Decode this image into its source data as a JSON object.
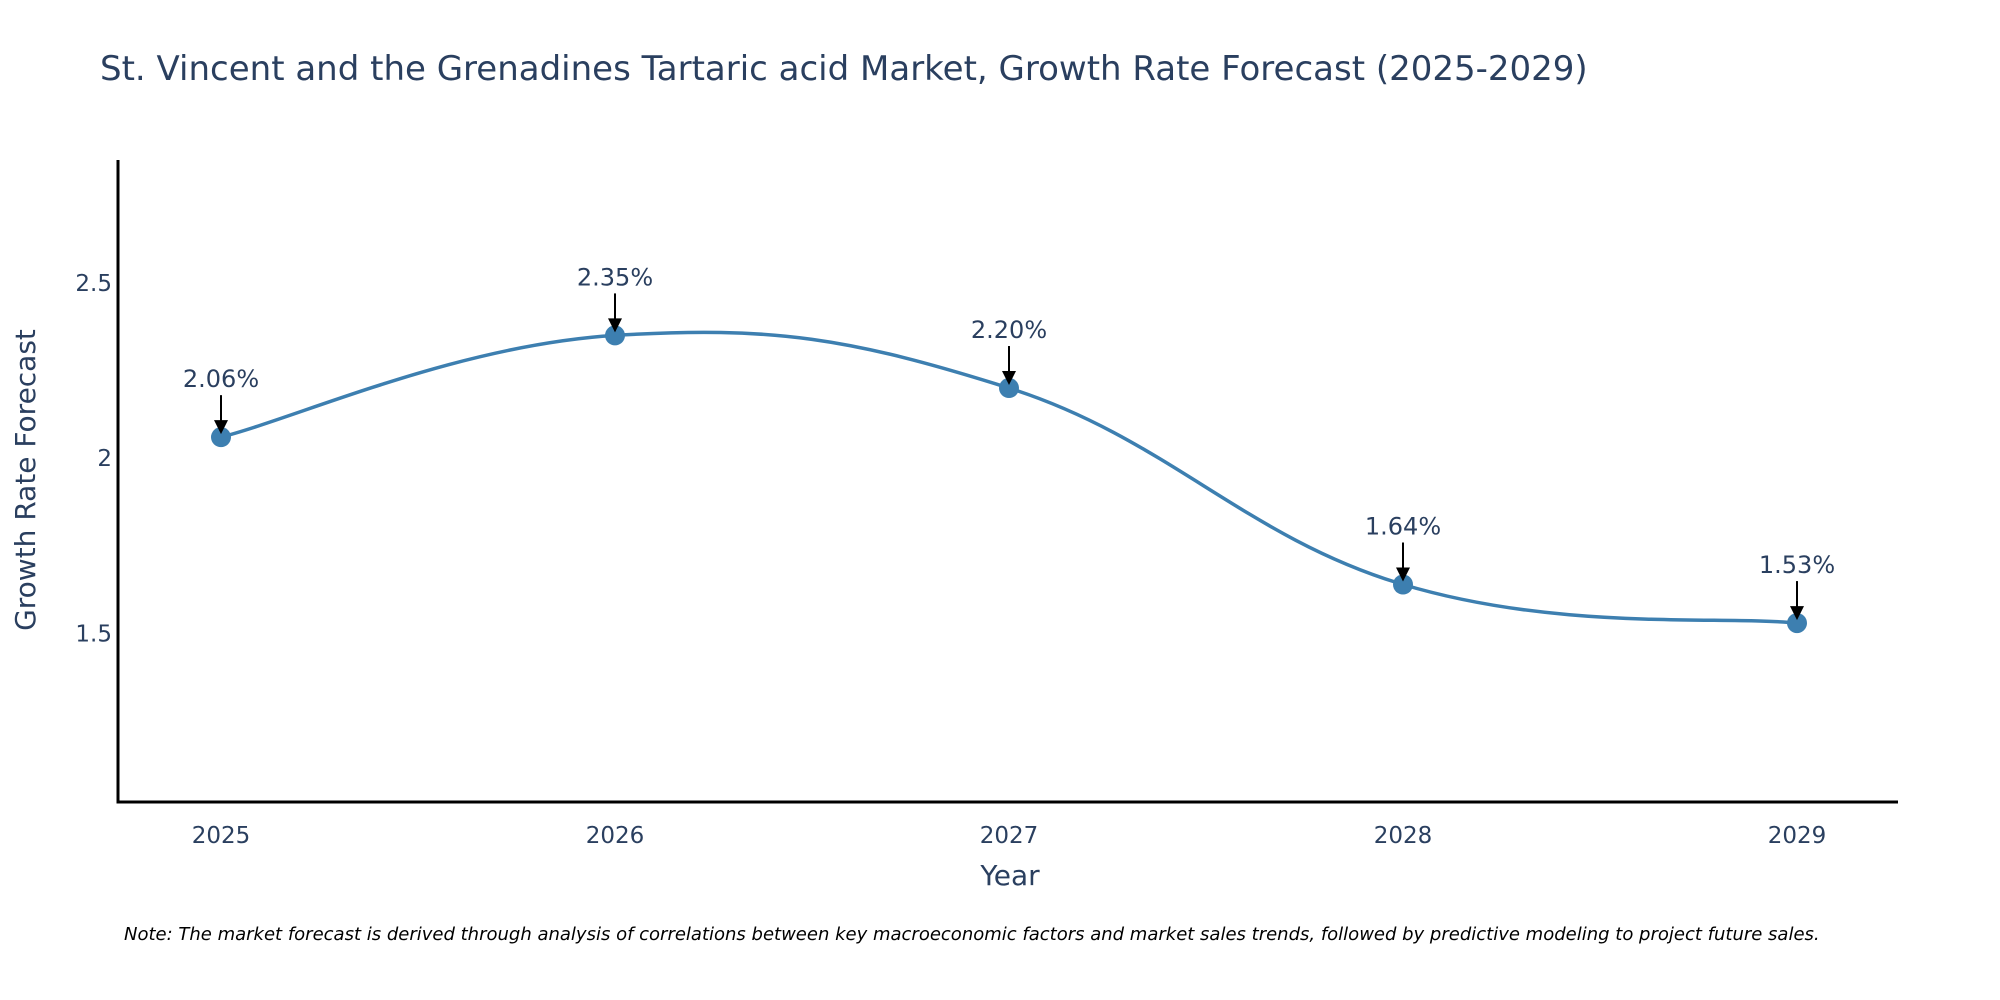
{
  "chart_data": {
    "type": "line",
    "title": "St. Vincent and the Grenadines Tartaric acid Market, Growth Rate Forecast (2025-2029)",
    "xlabel": "Year",
    "ylabel": "Growth Rate Forecast",
    "categories": [
      "2025",
      "2026",
      "2027",
      "2028",
      "2029"
    ],
    "values": [
      2.06,
      2.35,
      2.2,
      1.64,
      1.53
    ],
    "data_labels": [
      "2.06%",
      "2.35%",
      "2.20%",
      "1.64%",
      "1.53%"
    ],
    "yticks": [
      1.5,
      2,
      2.5
    ],
    "ytick_labels": [
      "1.5",
      "2",
      "2.5"
    ],
    "ylim": [
      1.02,
      2.85
    ],
    "grid": false,
    "line_shape": "spline",
    "series_color": "#3d7fb0",
    "note": "Note: The market forecast is derived through analysis of correlations between key macroeconomic factors and market sales trends, followed by predictive modeling to project future sales."
  }
}
